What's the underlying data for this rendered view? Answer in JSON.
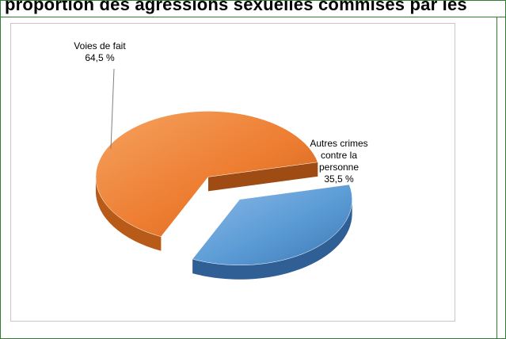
{
  "header": {
    "title": "proportion des agressions sexuelles commises par les"
  },
  "chart_data": {
    "type": "pie",
    "title": "",
    "style": "3d-exploded",
    "slices": [
      {
        "name": "Voies de fait",
        "value": 64.5,
        "value_label": "64,5 %",
        "color": "#ed7d31"
      },
      {
        "name": "Autres crimes contre la personne",
        "value": 35.5,
        "value_label": "35,5 %",
        "color": "#5b9bd5"
      }
    ]
  }
}
